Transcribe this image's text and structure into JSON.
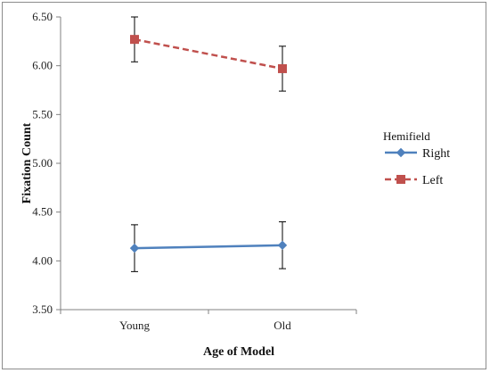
{
  "chart_data": {
    "type": "line",
    "title": "",
    "xlabel": "Age of Model",
    "ylabel": "Fixation Count",
    "categories": [
      "Young",
      "Old"
    ],
    "ylim": [
      3.5,
      6.5
    ],
    "yticks": [
      "3.50",
      "4.00",
      "4.50",
      "5.00",
      "5.50",
      "6.00",
      "6.50"
    ],
    "legend": {
      "title": "Hemifield",
      "position": "right"
    },
    "series": [
      {
        "name": "Right",
        "values": [
          4.13,
          4.16
        ],
        "errors": [
          0.24,
          0.24
        ],
        "color": "#4f81bd",
        "marker": "diamond",
        "dash": "solid"
      },
      {
        "name": "Left",
        "values": [
          6.27,
          5.97
        ],
        "errors": [
          0.23,
          0.23
        ],
        "color": "#c0504d",
        "marker": "square",
        "dash": "dashed"
      }
    ]
  }
}
